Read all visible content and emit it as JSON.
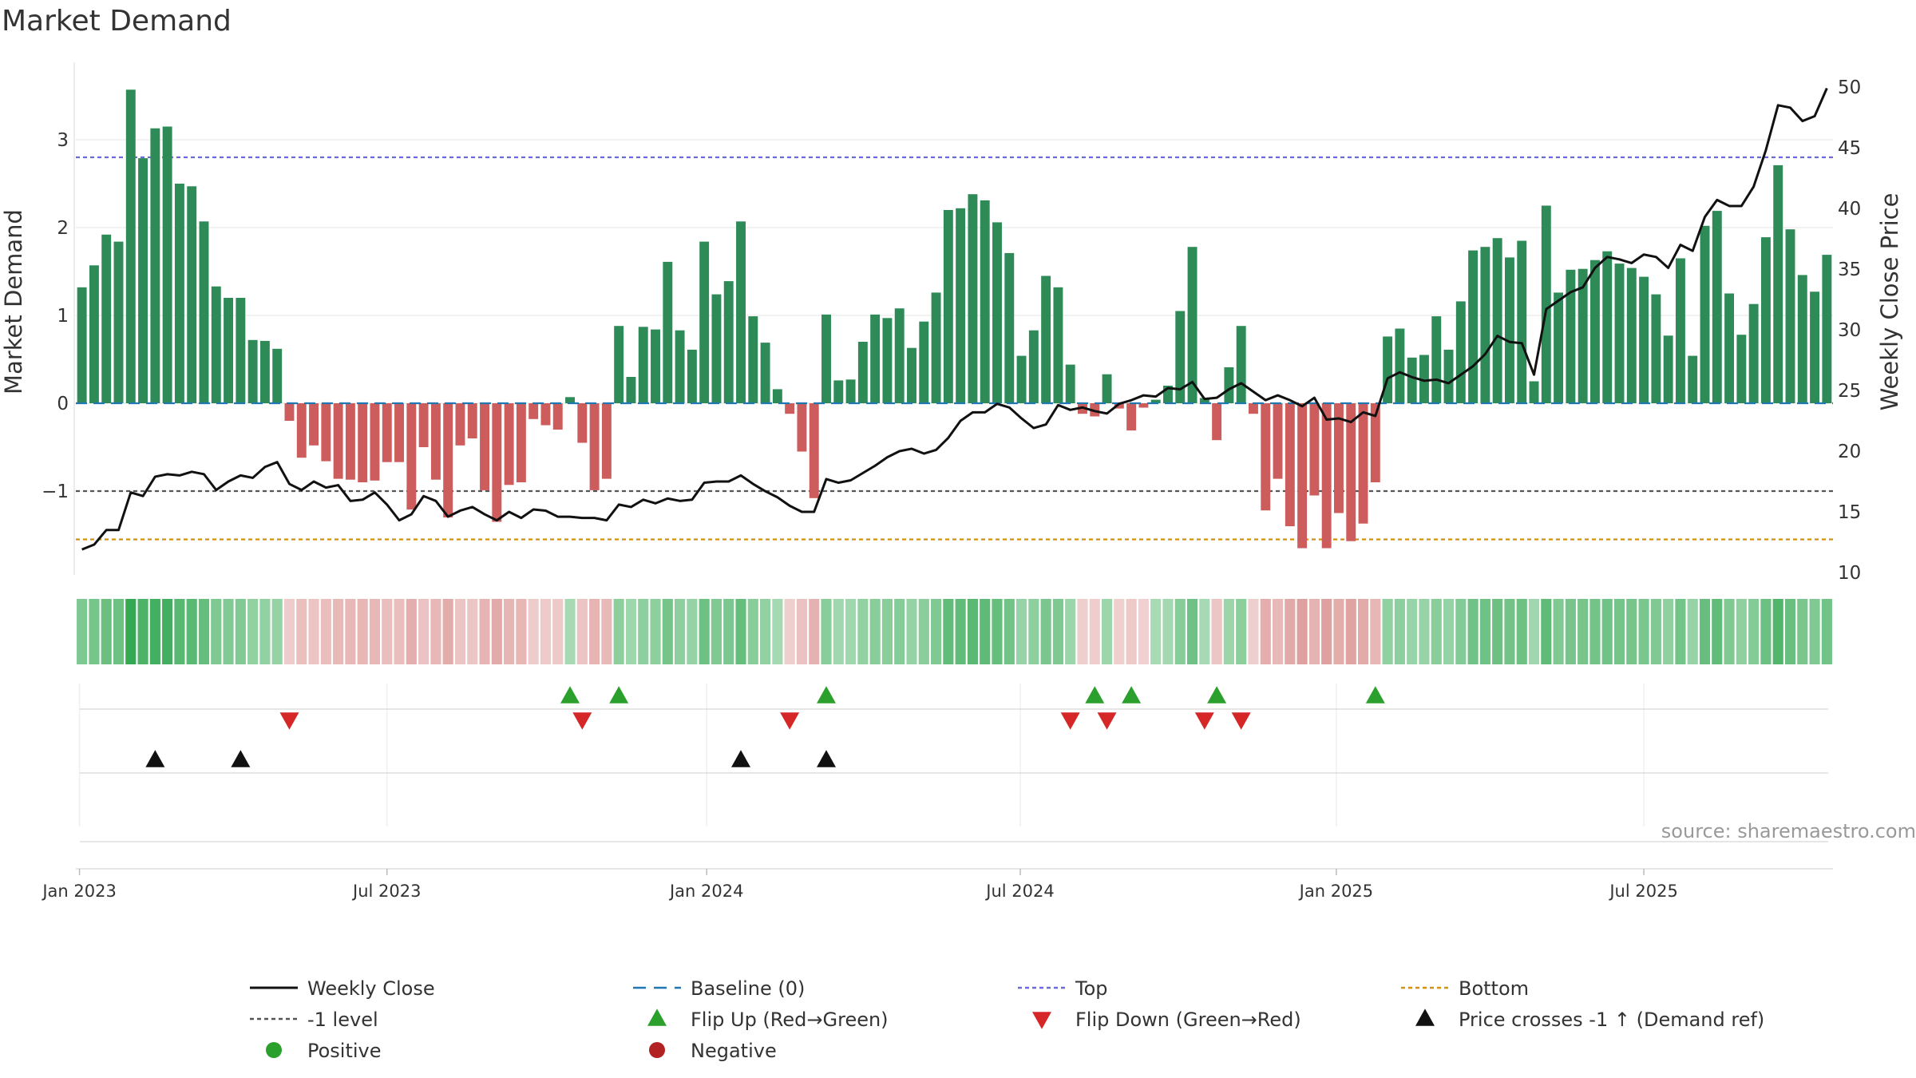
{
  "chart_data": {
    "type": "bar",
    "title": "Market Demand",
    "ylabel": "Market Demand",
    "y2label": "Weekly Close Price",
    "ylim": [
      -2.0,
      3.9
    ],
    "y2lim": [
      9,
      51
    ],
    "yticks": [
      -1,
      0,
      1,
      2,
      3
    ],
    "y2ticks": [
      10,
      15,
      20,
      25,
      30,
      35,
      40,
      45,
      50
    ],
    "x_labels": [
      "Jan 2023",
      "Jul 2023",
      "Jan 2024",
      "Jul 2024",
      "Jan 2025",
      "Jul 2025"
    ],
    "x_label_weeks": [
      0.3,
      25.5,
      51.7,
      77.4,
      103.3,
      128.5
    ],
    "top_level": 2.8,
    "bottom_level": -1.55,
    "minus_one_level": -1,
    "series": [
      {
        "name": "Market Demand",
        "values": [
          1.32,
          1.57,
          1.92,
          1.84,
          3.57,
          2.79,
          3.13,
          3.15,
          2.5,
          2.47,
          2.07,
          1.33,
          1.2,
          1.2,
          0.72,
          0.71,
          0.62,
          -0.2,
          -0.62,
          -0.48,
          -0.66,
          -0.86,
          -0.87,
          -0.9,
          -0.88,
          -0.67,
          -0.67,
          -1.21,
          -0.5,
          -0.87,
          -1.3,
          -0.48,
          -0.4,
          -0.99,
          -1.35,
          -0.93,
          -0.9,
          -0.18,
          -0.25,
          -0.3,
          0.07,
          -0.45,
          -0.99,
          -0.86,
          0.88,
          0.3,
          0.87,
          0.84,
          1.61,
          0.83,
          0.61,
          1.84,
          1.24,
          1.39,
          2.07,
          0.99,
          0.69,
          0.16,
          -0.12,
          -0.55,
          -1.08,
          1.01,
          0.26,
          0.27,
          0.7,
          1.01,
          0.97,
          1.08,
          0.63,
          0.93,
          1.26,
          2.2,
          2.22,
          2.38,
          2.31,
          2.06,
          1.71,
          0.54,
          0.83,
          1.45,
          1.32,
          0.44,
          -0.12,
          -0.15,
          0.33,
          -0.06,
          -0.31,
          -0.05,
          0.04,
          0.2,
          1.05,
          1.78,
          0.06,
          -0.42,
          0.41,
          0.88,
          -0.12,
          -1.22,
          -0.86,
          -1.4,
          -1.65,
          -1.05,
          -1.65,
          -1.25,
          -1.57,
          -1.37,
          -0.9,
          0.76,
          0.85,
          0.52,
          0.55,
          0.99,
          0.61,
          1.16,
          1.74,
          1.78,
          1.88,
          1.66,
          1.85,
          0.25,
          2.25,
          1.26,
          1.52,
          1.53,
          1.63,
          1.73,
          1.59,
          1.54,
          1.44,
          1.24,
          0.77,
          1.65,
          0.54,
          2.02,
          2.19,
          1.25,
          0.78,
          1.13,
          1.89,
          2.71,
          1.98,
          1.46,
          1.27,
          1.69
        ]
      },
      {
        "name": "Weekly Close",
        "values": [
          11.9,
          12.3,
          13.5,
          13.5,
          16.6,
          16.3,
          17.9,
          18.1,
          18.0,
          18.3,
          18.1,
          16.8,
          17.5,
          18.0,
          17.8,
          18.7,
          19.1,
          17.3,
          16.8,
          17.5,
          17.0,
          17.2,
          15.9,
          16.0,
          16.6,
          15.6,
          14.3,
          14.8,
          16.3,
          15.9,
          14.6,
          15.1,
          15.4,
          14.8,
          14.3,
          15.0,
          14.5,
          15.2,
          15.1,
          14.6,
          14.6,
          14.5,
          14.5,
          14.3,
          15.6,
          15.4,
          16.0,
          15.7,
          16.1,
          15.9,
          16.0,
          17.4,
          17.5,
          17.5,
          18.0,
          17.3,
          16.7,
          16.2,
          15.5,
          15.0,
          15.0,
          17.7,
          17.4,
          17.6,
          18.2,
          18.8,
          19.5,
          20.0,
          20.2,
          19.8,
          20.1,
          21.1,
          22.5,
          23.2,
          23.2,
          23.9,
          23.6,
          22.7,
          21.9,
          22.2,
          23.8,
          23.4,
          23.6,
          23.3,
          23.1,
          23.9,
          24.2,
          24.6,
          24.5,
          25.2,
          25.1,
          25.7,
          24.3,
          24.4,
          25.1,
          25.6,
          24.9,
          24.2,
          24.6,
          24.2,
          23.7,
          24.4,
          22.6,
          22.7,
          22.4,
          23.2,
          22.9,
          26.0,
          26.5,
          26.1,
          25.8,
          25.9,
          25.6,
          26.3,
          27.0,
          28.0,
          29.5,
          29.0,
          28.9,
          26.3,
          31.7,
          32.4,
          33.1,
          33.5,
          35.1,
          36.0,
          35.8,
          35.5,
          36.2,
          36.0,
          35.1,
          37.0,
          36.5,
          39.3,
          40.7,
          40.2,
          40.2,
          41.8,
          44.8,
          48.5,
          48.3,
          47.2,
          47.6,
          49.9
        ]
      }
    ],
    "flip_up_weeks": [
      40,
      44,
      61,
      83,
      86,
      93,
      106
    ],
    "flip_down_weeks": [
      17,
      41,
      58,
      81,
      84,
      92,
      95
    ],
    "price_cross_weeks": [
      6,
      13,
      54,
      61
    ],
    "legend": [
      {
        "label": "Weekly Close",
        "symbol": "line-black"
      },
      {
        "label": "Baseline (0)",
        "symbol": "dash-blue"
      },
      {
        "label": "Top",
        "symbol": "dot-purple"
      },
      {
        "label": "Bottom",
        "symbol": "dot-orange"
      },
      {
        "label": "-1 level",
        "symbol": "dot-gray"
      },
      {
        "label": "Flip Up (Red→Green)",
        "symbol": "tri-up-green"
      },
      {
        "label": "Flip Down (Green→Red)",
        "symbol": "tri-down-red"
      },
      {
        "label": "Price crosses -1 ↑ (Demand ref)",
        "symbol": "tri-up-black"
      },
      {
        "label": "Positive",
        "symbol": "circle-green"
      },
      {
        "label": "Negative",
        "symbol": "circle-red"
      }
    ],
    "source": "source: sharemaestro.com"
  },
  "colors": {
    "positive_bar": "#2e8b57",
    "negative_bar": "#cd5c5c",
    "price_line": "#111111",
    "baseline": "#1f77b4",
    "top_line": "#6a6ad8",
    "bottom_line": "#d4900f",
    "minus_one_line": "#555555",
    "flip_up": "#2ca02c",
    "flip_down": "#d62728",
    "price_cross": "#111111",
    "positive_dot": "#2ca02c",
    "negative_dot": "#b22222"
  }
}
